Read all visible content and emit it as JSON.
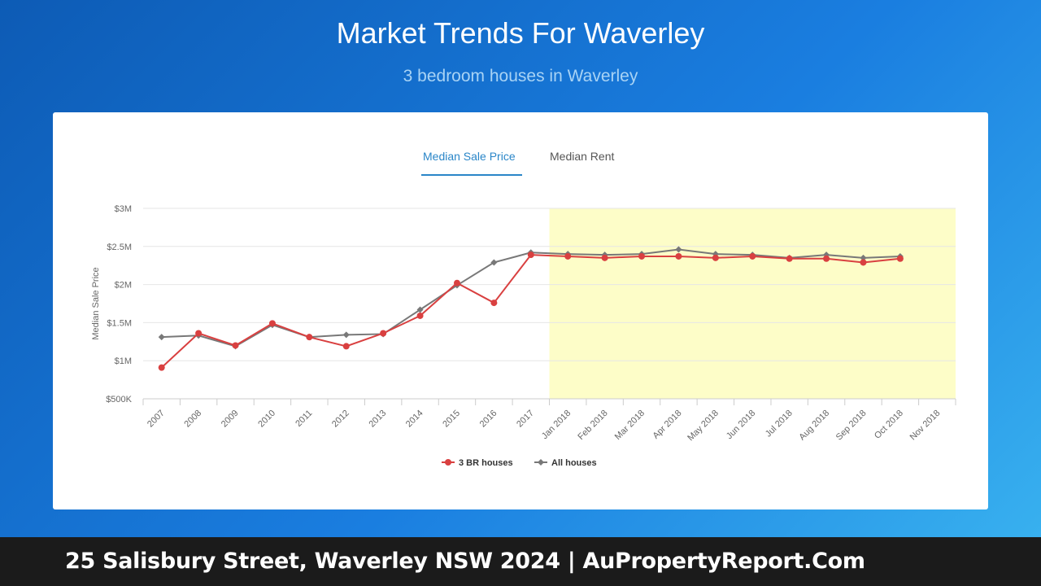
{
  "header": {
    "title": "Market Trends For Waverley",
    "subtitle": "3 bedroom houses in Waverley"
  },
  "tabs": [
    {
      "label": "Median Sale Price",
      "active": true
    },
    {
      "label": "Median Rent",
      "active": false
    }
  ],
  "footer": {
    "text": "25 Salisbury Street, Waverley NSW 2024 | AuPropertyReport.Com"
  },
  "colors": {
    "series_3br": "#d94040",
    "series_all": "#787878",
    "highlight": "#fdfdc8",
    "accent": "#2a86c8"
  },
  "chart_data": {
    "type": "line",
    "ylabel": "Median Sale Price",
    "xlabel": "",
    "categories": [
      "2007",
      "2008",
      "2009",
      "2010",
      "2011",
      "2012",
      "2013",
      "2014",
      "2015",
      "2016",
      "2017",
      "Jan 2018",
      "Feb 2018",
      "Mar 2018",
      "Apr 2018",
      "May 2018",
      "Jun 2018",
      "Jul 2018",
      "Aug 2018",
      "Sep 2018",
      "Oct 2018",
      "Nov 2018"
    ],
    "yticks": [
      "$500K",
      "$1M",
      "$1.5M",
      "$2M",
      "$2.5M",
      "$3M"
    ],
    "ytick_values": [
      500000,
      1000000,
      1500000,
      2000000,
      2500000,
      3000000
    ],
    "ylim": [
      500000,
      3000000
    ],
    "highlight_from": "Jan 2018",
    "legend_position": "bottom",
    "grid": true,
    "series": [
      {
        "name": "3 BR houses",
        "marker": "circle",
        "values": [
          910000,
          1360000,
          1200000,
          1490000,
          1310000,
          1190000,
          1360000,
          1590000,
          2020000,
          1760000,
          2390000,
          2370000,
          2350000,
          2370000,
          2370000,
          2350000,
          2370000,
          2340000,
          2340000,
          2290000,
          2340000,
          null
        ]
      },
      {
        "name": "All houses",
        "marker": "diamond",
        "values": [
          1310000,
          1330000,
          1190000,
          1470000,
          1310000,
          1340000,
          1350000,
          1670000,
          1990000,
          2290000,
          2420000,
          2400000,
          2390000,
          2400000,
          2460000,
          2400000,
          2390000,
          2350000,
          2390000,
          2350000,
          2370000,
          null
        ]
      }
    ]
  }
}
